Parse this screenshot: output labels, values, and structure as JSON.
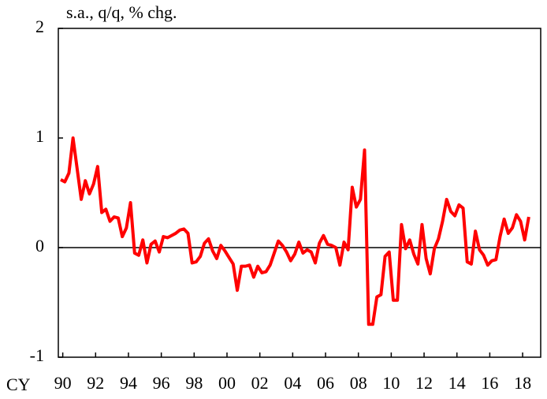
{
  "chart_data": {
    "type": "line",
    "title": "s.a., q/q, % chg.",
    "x_prefix": "CY",
    "x": [
      1989.875,
      1990.125,
      1990.375,
      1990.625,
      1990.875,
      1991.125,
      1991.375,
      1991.625,
      1991.875,
      1992.125,
      1992.375,
      1992.625,
      1992.875,
      1993.125,
      1993.375,
      1993.625,
      1993.875,
      1994.125,
      1994.375,
      1994.625,
      1994.875,
      1995.125,
      1995.375,
      1995.625,
      1995.875,
      1996.125,
      1996.375,
      1996.625,
      1996.875,
      1997.125,
      1997.375,
      1997.625,
      1997.875,
      1998.125,
      1998.375,
      1998.625,
      1998.875,
      1999.125,
      1999.375,
      1999.625,
      1999.875,
      2000.125,
      2000.375,
      2000.625,
      2000.875,
      2001.125,
      2001.375,
      2001.625,
      2001.875,
      2002.125,
      2002.375,
      2002.625,
      2002.875,
      2003.125,
      2003.375,
      2003.625,
      2003.875,
      2004.125,
      2004.375,
      2004.625,
      2004.875,
      2005.125,
      2005.375,
      2005.625,
      2005.875,
      2006.125,
      2006.375,
      2006.625,
      2006.875,
      2007.125,
      2007.375,
      2007.625,
      2007.875,
      2008.125,
      2008.375,
      2008.625,
      2008.875,
      2009.125,
      2009.375,
      2009.625,
      2009.875,
      2010.125,
      2010.375,
      2010.625,
      2010.875,
      2011.125,
      2011.375,
      2011.625,
      2011.875,
      2012.125,
      2012.375,
      2012.625,
      2012.875,
      2013.125,
      2013.375,
      2013.625,
      2013.875,
      2014.125,
      2014.375,
      2014.625,
      2014.875,
      2015.125,
      2015.375,
      2015.625,
      2015.875,
      2016.125,
      2016.375,
      2016.625,
      2016.875,
      2017.125,
      2017.375,
      2017.625,
      2017.875,
      2018.125,
      2018.375
    ],
    "series": [
      {
        "color": "#ff0000",
        "values": [
          0.62,
          0.6,
          0.68,
          1.0,
          0.72,
          0.44,
          0.61,
          0.49,
          0.58,
          0.74,
          0.32,
          0.35,
          0.24,
          0.28,
          0.27,
          0.1,
          0.18,
          0.41,
          -0.05,
          -0.07,
          0.07,
          -0.14,
          0.03,
          0.06,
          -0.04,
          0.1,
          0.09,
          0.11,
          0.13,
          0.16,
          0.17,
          0.13,
          -0.14,
          -0.13,
          -0.08,
          0.04,
          0.08,
          -0.03,
          -0.1,
          0.02,
          -0.03,
          -0.09,
          -0.15,
          -0.39,
          -0.17,
          -0.17,
          -0.16,
          -0.27,
          -0.17,
          -0.23,
          -0.22,
          -0.16,
          -0.05,
          0.06,
          0.02,
          -0.04,
          -0.12,
          -0.06,
          0.05,
          -0.05,
          -0.02,
          -0.04,
          -0.14,
          0.04,
          0.11,
          0.03,
          0.02,
          0.0,
          -0.16,
          0.05,
          -0.02,
          0.55,
          0.37,
          0.44,
          0.89,
          -0.7,
          -0.7,
          -0.45,
          -0.43,
          -0.08,
          -0.04,
          -0.48,
          -0.48,
          0.21,
          -0.01,
          0.07,
          -0.06,
          -0.15,
          0.21,
          -0.1,
          -0.24,
          -0.01,
          0.08,
          0.24,
          0.44,
          0.33,
          0.29,
          0.39,
          0.36,
          -0.13,
          -0.15,
          0.15,
          -0.02,
          -0.07,
          -0.16,
          -0.12,
          -0.11,
          0.1,
          0.26,
          0.13,
          0.18,
          0.3,
          0.24,
          0.07,
          0.28
        ]
      }
    ],
    "xlim": [
      1989.73,
      2019.1
    ],
    "xticks": [
      {
        "value": 1990,
        "label": "90"
      },
      {
        "value": 1992,
        "label": "92"
      },
      {
        "value": 1994,
        "label": "94"
      },
      {
        "value": 1996,
        "label": "96"
      },
      {
        "value": 1998,
        "label": "98"
      },
      {
        "value": 2000,
        "label": "00"
      },
      {
        "value": 2002,
        "label": "02"
      },
      {
        "value": 2004,
        "label": "04"
      },
      {
        "value": 2006,
        "label": "06"
      },
      {
        "value": 2008,
        "label": "08"
      },
      {
        "value": 2010,
        "label": "10"
      },
      {
        "value": 2012,
        "label": "12"
      },
      {
        "value": 2014,
        "label": "14"
      },
      {
        "value": 2016,
        "label": "16"
      },
      {
        "value": 2018,
        "label": "18"
      }
    ],
    "ylim": [
      -1,
      2
    ],
    "yticks": [
      -1,
      0,
      1,
      2
    ],
    "zero_line": true
  }
}
